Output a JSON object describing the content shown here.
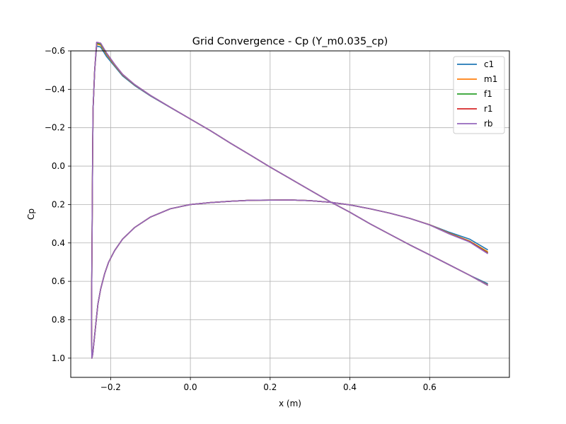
{
  "chart_data": {
    "type": "line",
    "title": "Grid Convergence - Cp (Y_m0.035_cp)",
    "xlabel": "x (m)",
    "ylabel": "Cp",
    "xlim": [
      -0.3,
      0.8
    ],
    "ylim": [
      1.1,
      -0.6
    ],
    "y_inverted": true,
    "grid": true,
    "legend_position": "top-right",
    "x_ticks": [
      -0.2,
      0.0,
      0.2,
      0.4,
      0.6
    ],
    "x_tick_labels": [
      "−0.2",
      "0.0",
      "0.2",
      "0.4",
      "0.6"
    ],
    "y_ticks": [
      -0.6,
      -0.4,
      -0.2,
      0.0,
      0.2,
      0.4,
      0.6,
      0.8,
      1.0
    ],
    "y_tick_labels": [
      "−0.6",
      "−0.4",
      "−0.2",
      "0.0",
      "0.2",
      "0.4",
      "0.6",
      "0.8",
      "1.0"
    ],
    "series": [
      {
        "name": "c1",
        "color": "#1f77b4",
        "x": [
          0.745,
          0.7,
          0.65,
          0.6,
          0.55,
          0.5,
          0.45,
          0.4,
          0.35,
          0.3,
          0.25,
          0.2,
          0.15,
          0.1,
          0.05,
          0.0,
          -0.05,
          -0.1,
          -0.14,
          -0.17,
          -0.19,
          -0.205,
          -0.215,
          -0.225,
          -0.232,
          -0.236,
          -0.24,
          -0.243,
          -0.245,
          -0.247,
          -0.248,
          -0.247,
          -0.246,
          -0.245,
          -0.244,
          -0.24,
          -0.235,
          -0.225,
          -0.21,
          -0.19,
          -0.17,
          -0.14,
          -0.1,
          -0.05,
          0.0,
          0.05,
          0.1,
          0.15,
          0.2,
          0.25,
          0.3,
          0.35,
          0.4,
          0.45,
          0.5,
          0.55,
          0.6,
          0.65,
          0.7,
          0.745
        ],
        "y": [
          0.435,
          0.38,
          0.345,
          0.305,
          0.272,
          0.245,
          0.222,
          0.202,
          0.188,
          0.18,
          0.176,
          0.177,
          0.178,
          0.183,
          0.19,
          0.2,
          0.222,
          0.265,
          0.32,
          0.38,
          0.44,
          0.5,
          0.56,
          0.64,
          0.72,
          0.8,
          0.88,
          0.94,
          0.98,
          1.0,
          0.8,
          0.5,
          0.2,
          -0.1,
          -0.3,
          -0.5,
          -0.625,
          -0.62,
          -0.57,
          -0.52,
          -0.47,
          -0.42,
          -0.365,
          -0.305,
          -0.245,
          -0.185,
          -0.12,
          -0.058,
          0.005,
          0.065,
          0.125,
          0.185,
          0.24,
          0.3,
          0.355,
          0.41,
          0.462,
          0.515,
          0.568,
          0.612
        ]
      },
      {
        "name": "m1",
        "color": "#ff7f0e",
        "x": [
          0.745,
          0.7,
          0.65,
          0.6,
          0.55,
          0.5,
          0.45,
          0.4,
          0.35,
          0.3,
          0.25,
          0.2,
          0.15,
          0.1,
          0.05,
          0.0,
          -0.05,
          -0.1,
          -0.14,
          -0.17,
          -0.19,
          -0.205,
          -0.215,
          -0.225,
          -0.232,
          -0.236,
          -0.24,
          -0.243,
          -0.245,
          -0.247,
          -0.248,
          -0.247,
          -0.246,
          -0.245,
          -0.244,
          -0.24,
          -0.235,
          -0.225,
          -0.21,
          -0.19,
          -0.17,
          -0.14,
          -0.1,
          -0.05,
          0.0,
          0.05,
          0.1,
          0.15,
          0.2,
          0.25,
          0.3,
          0.35,
          0.4,
          0.45,
          0.5,
          0.55,
          0.6,
          0.65,
          0.7,
          0.745
        ],
        "y": [
          0.445,
          0.39,
          0.35,
          0.305,
          0.272,
          0.245,
          0.222,
          0.202,
          0.188,
          0.18,
          0.176,
          0.177,
          0.178,
          0.183,
          0.19,
          0.2,
          0.222,
          0.265,
          0.32,
          0.38,
          0.44,
          0.5,
          0.56,
          0.64,
          0.72,
          0.8,
          0.88,
          0.94,
          0.98,
          1.0,
          0.8,
          0.5,
          0.2,
          -0.1,
          -0.3,
          -0.5,
          -0.635,
          -0.63,
          -0.58,
          -0.525,
          -0.475,
          -0.423,
          -0.367,
          -0.306,
          -0.245,
          -0.185,
          -0.12,
          -0.058,
          0.005,
          0.065,
          0.125,
          0.185,
          0.24,
          0.3,
          0.355,
          0.41,
          0.462,
          0.515,
          0.568,
          0.618
        ]
      },
      {
        "name": "f1",
        "color": "#2ca02c",
        "x": [
          0.745,
          0.7,
          0.65,
          0.6,
          0.55,
          0.5,
          0.45,
          0.4,
          0.35,
          0.3,
          0.25,
          0.2,
          0.15,
          0.1,
          0.05,
          0.0,
          -0.05,
          -0.1,
          -0.14,
          -0.17,
          -0.19,
          -0.205,
          -0.215,
          -0.225,
          -0.232,
          -0.236,
          -0.24,
          -0.243,
          -0.245,
          -0.247,
          -0.248,
          -0.247,
          -0.246,
          -0.245,
          -0.244,
          -0.24,
          -0.235,
          -0.225,
          -0.21,
          -0.19,
          -0.17,
          -0.14,
          -0.1,
          -0.05,
          0.0,
          0.05,
          0.1,
          0.15,
          0.2,
          0.25,
          0.3,
          0.35,
          0.4,
          0.45,
          0.5,
          0.55,
          0.6,
          0.65,
          0.7,
          0.745
        ],
        "y": [
          0.45,
          0.392,
          0.352,
          0.306,
          0.272,
          0.245,
          0.222,
          0.202,
          0.188,
          0.18,
          0.176,
          0.177,
          0.178,
          0.183,
          0.19,
          0.2,
          0.222,
          0.265,
          0.32,
          0.38,
          0.44,
          0.5,
          0.56,
          0.64,
          0.72,
          0.8,
          0.88,
          0.94,
          0.98,
          1.0,
          0.8,
          0.5,
          0.2,
          -0.1,
          -0.3,
          -0.5,
          -0.64,
          -0.635,
          -0.585,
          -0.528,
          -0.477,
          -0.424,
          -0.368,
          -0.306,
          -0.245,
          -0.185,
          -0.12,
          -0.058,
          0.005,
          0.065,
          0.125,
          0.185,
          0.24,
          0.3,
          0.355,
          0.41,
          0.462,
          0.515,
          0.568,
          0.62
        ]
      },
      {
        "name": "r1",
        "color": "#d62728",
        "x": [
          0.745,
          0.7,
          0.65,
          0.6,
          0.55,
          0.5,
          0.45,
          0.4,
          0.35,
          0.3,
          0.25,
          0.2,
          0.15,
          0.1,
          0.05,
          0.0,
          -0.05,
          -0.1,
          -0.14,
          -0.17,
          -0.19,
          -0.205,
          -0.215,
          -0.225,
          -0.232,
          -0.236,
          -0.24,
          -0.243,
          -0.245,
          -0.247,
          -0.248,
          -0.247,
          -0.246,
          -0.245,
          -0.244,
          -0.24,
          -0.235,
          -0.225,
          -0.21,
          -0.19,
          -0.17,
          -0.14,
          -0.1,
          -0.05,
          0.0,
          0.05,
          0.1,
          0.15,
          0.2,
          0.25,
          0.3,
          0.35,
          0.4,
          0.45,
          0.5,
          0.55,
          0.6,
          0.65,
          0.7,
          0.745
        ],
        "y": [
          0.452,
          0.393,
          0.353,
          0.306,
          0.272,
          0.245,
          0.222,
          0.202,
          0.188,
          0.18,
          0.176,
          0.177,
          0.178,
          0.183,
          0.19,
          0.2,
          0.222,
          0.265,
          0.32,
          0.38,
          0.44,
          0.5,
          0.56,
          0.64,
          0.72,
          0.8,
          0.88,
          0.94,
          0.98,
          1.0,
          0.8,
          0.5,
          0.2,
          -0.1,
          -0.3,
          -0.5,
          -0.645,
          -0.64,
          -0.588,
          -0.53,
          -0.478,
          -0.425,
          -0.368,
          -0.306,
          -0.245,
          -0.185,
          -0.12,
          -0.058,
          0.005,
          0.065,
          0.125,
          0.185,
          0.24,
          0.3,
          0.355,
          0.41,
          0.462,
          0.515,
          0.568,
          0.62
        ]
      },
      {
        "name": "rb",
        "color": "#9467bd",
        "x": [
          0.745,
          0.7,
          0.65,
          0.6,
          0.55,
          0.5,
          0.45,
          0.4,
          0.35,
          0.3,
          0.25,
          0.2,
          0.15,
          0.1,
          0.05,
          0.0,
          -0.05,
          -0.1,
          -0.14,
          -0.17,
          -0.19,
          -0.205,
          -0.215,
          -0.225,
          -0.232,
          -0.236,
          -0.24,
          -0.243,
          -0.245,
          -0.247,
          -0.248,
          -0.247,
          -0.246,
          -0.245,
          -0.244,
          -0.24,
          -0.235,
          -0.225,
          -0.21,
          -0.19,
          -0.17,
          -0.14,
          -0.1,
          -0.05,
          0.0,
          0.05,
          0.1,
          0.15,
          0.2,
          0.25,
          0.3,
          0.35,
          0.4,
          0.45,
          0.5,
          0.55,
          0.6,
          0.65,
          0.7,
          0.745
        ],
        "y": [
          0.455,
          0.395,
          0.354,
          0.306,
          0.272,
          0.245,
          0.222,
          0.202,
          0.188,
          0.18,
          0.176,
          0.177,
          0.178,
          0.183,
          0.19,
          0.2,
          0.222,
          0.265,
          0.32,
          0.38,
          0.44,
          0.5,
          0.56,
          0.64,
          0.72,
          0.8,
          0.88,
          0.94,
          0.98,
          1.0,
          0.8,
          0.5,
          0.2,
          -0.1,
          -0.3,
          -0.5,
          -0.645,
          -0.64,
          -0.588,
          -0.53,
          -0.478,
          -0.425,
          -0.368,
          -0.306,
          -0.245,
          -0.185,
          -0.12,
          -0.058,
          0.005,
          0.065,
          0.125,
          0.185,
          0.24,
          0.3,
          0.355,
          0.41,
          0.462,
          0.515,
          0.568,
          0.62
        ]
      }
    ]
  }
}
